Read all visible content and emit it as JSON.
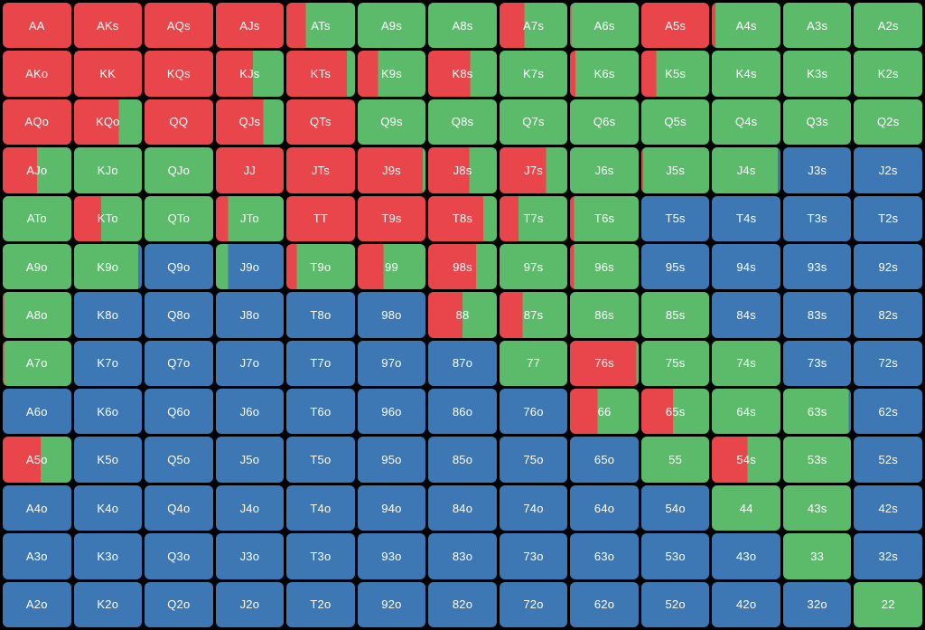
{
  "colors": {
    "raise": "#e8464a",
    "call": "#5cbb6b",
    "fold": "#3d78b4"
  },
  "rows": [
    [
      "AA",
      "AKs",
      "AQs",
      "AJs",
      "ATs",
      "A9s",
      "A8s",
      "A7s",
      "A6s",
      "A5s",
      "A4s",
      "A3s",
      "A2s"
    ],
    [
      "AKo",
      "KK",
      "KQs",
      "KJs",
      "KTs",
      "K9s",
      "K8s",
      "K7s",
      "K6s",
      "K5s",
      "K4s",
      "K3s",
      "K2s"
    ],
    [
      "AQo",
      "KQo",
      "QQ",
      "QJs",
      "QTs",
      "Q9s",
      "Q8s",
      "Q7s",
      "Q6s",
      "Q5s",
      "Q4s",
      "Q3s",
      "Q2s"
    ],
    [
      "AJo",
      "KJo",
      "QJo",
      "JJ",
      "JTs",
      "J9s",
      "J8s",
      "J7s",
      "J6s",
      "J5s",
      "J4s",
      "J3s",
      "J2s"
    ],
    [
      "ATo",
      "KTo",
      "QTo",
      "JTo",
      "TT",
      "T9s",
      "T8s",
      "T7s",
      "T6s",
      "T5s",
      "T4s",
      "T3s",
      "T2s"
    ],
    [
      "A9o",
      "K9o",
      "Q9o",
      "J9o",
      "T9o",
      "99",
      "98s",
      "97s",
      "96s",
      "95s",
      "94s",
      "93s",
      "92s"
    ],
    [
      "A8o",
      "K8o",
      "Q8o",
      "J8o",
      "T8o",
      "98o",
      "88",
      "87s",
      "86s",
      "85s",
      "84s",
      "83s",
      "82s"
    ],
    [
      "A7o",
      "K7o",
      "Q7o",
      "J7o",
      "T7o",
      "97o",
      "87o",
      "77",
      "76s",
      "75s",
      "74s",
      "73s",
      "72s"
    ],
    [
      "A6o",
      "K6o",
      "Q6o",
      "J6o",
      "T6o",
      "96o",
      "86o",
      "76o",
      "66",
      "65s",
      "64s",
      "63s",
      "62s"
    ],
    [
      "A5o",
      "K5o",
      "Q5o",
      "J5o",
      "T5o",
      "95o",
      "85o",
      "75o",
      "65o",
      "55",
      "54s",
      "53s",
      "52s"
    ],
    [
      "A4o",
      "K4o",
      "Q4o",
      "J4o",
      "T4o",
      "94o",
      "84o",
      "74o",
      "64o",
      "54o",
      "44",
      "43s",
      "42s"
    ],
    [
      "A3o",
      "K3o",
      "Q3o",
      "J3o",
      "T3o",
      "93o",
      "83o",
      "73o",
      "63o",
      "53o",
      "43o",
      "33",
      "32s"
    ],
    [
      "A2o",
      "K2o",
      "Q2o",
      "J2o",
      "T2o",
      "92o",
      "82o",
      "72o",
      "62o",
      "52o",
      "42o",
      "32o",
      "22"
    ]
  ],
  "frequencies": [
    [
      [
        100,
        0,
        0
      ],
      [
        100,
        0,
        0
      ],
      [
        100,
        0,
        0
      ],
      [
        100,
        0,
        0
      ],
      [
        28,
        72,
        0
      ],
      [
        0,
        100,
        0
      ],
      [
        0,
        100,
        0
      ],
      [
        37,
        63,
        0
      ],
      [
        2,
        98,
        0
      ],
      [
        100,
        0,
        0
      ],
      [
        5,
        95,
        0
      ],
      [
        0,
        100,
        0
      ],
      [
        0,
        100,
        0
      ]
    ],
    [
      [
        100,
        0,
        0
      ],
      [
        100,
        0,
        0
      ],
      [
        100,
        0,
        0
      ],
      [
        55,
        45,
        0
      ],
      [
        88,
        12,
        0
      ],
      [
        30,
        70,
        0
      ],
      [
        61,
        39,
        0
      ],
      [
        0,
        100,
        0
      ],
      [
        8,
        92,
        0
      ],
      [
        22,
        78,
        0
      ],
      [
        0,
        100,
        0
      ],
      [
        0,
        100,
        0
      ],
      [
        0,
        100,
        0
      ]
    ],
    [
      [
        100,
        0,
        0
      ],
      [
        66,
        34,
        0
      ],
      [
        100,
        0,
        0
      ],
      [
        70,
        30,
        0
      ],
      [
        100,
        0,
        0
      ],
      [
        0,
        100,
        0
      ],
      [
        0,
        100,
        0
      ],
      [
        0,
        100,
        0
      ],
      [
        0,
        100,
        0
      ],
      [
        0,
        100,
        0
      ],
      [
        0,
        100,
        0
      ],
      [
        0,
        100,
        0
      ],
      [
        0,
        100,
        0
      ]
    ],
    [
      [
        50,
        50,
        0
      ],
      [
        0,
        100,
        0
      ],
      [
        0,
        100,
        0
      ],
      [
        100,
        0,
        0
      ],
      [
        100,
        0,
        0
      ],
      [
        96,
        4,
        0
      ],
      [
        60,
        40,
        0
      ],
      [
        69,
        31,
        0
      ],
      [
        0,
        100,
        0
      ],
      [
        3,
        97,
        0
      ],
      [
        0,
        96,
        4
      ],
      [
        0,
        0,
        100
      ],
      [
        0,
        0,
        100
      ]
    ],
    [
      [
        0,
        100,
        0
      ],
      [
        40,
        60,
        0
      ],
      [
        0,
        100,
        0
      ],
      [
        18,
        82,
        0
      ],
      [
        100,
        0,
        0
      ],
      [
        100,
        0,
        0
      ],
      [
        80,
        20,
        0
      ],
      [
        28,
        72,
        0
      ],
      [
        6,
        94,
        0
      ],
      [
        0,
        0,
        100
      ],
      [
        0,
        0,
        100
      ],
      [
        0,
        0,
        100
      ],
      [
        0,
        0,
        100
      ]
    ],
    [
      [
        0,
        100,
        0
      ],
      [
        0,
        95,
        5
      ],
      [
        0,
        0,
        100
      ],
      [
        0,
        18,
        82
      ],
      [
        15,
        85,
        0
      ],
      [
        38,
        62,
        0
      ],
      [
        70,
        30,
        0
      ],
      [
        0,
        100,
        0
      ],
      [
        6,
        94,
        0
      ],
      [
        0,
        0,
        100
      ],
      [
        0,
        0,
        100
      ],
      [
        0,
        0,
        100
      ],
      [
        0,
        0,
        100
      ]
    ],
    [
      [
        2,
        98,
        0
      ],
      [
        0,
        0,
        100
      ],
      [
        0,
        0,
        100
      ],
      [
        0,
        0,
        100
      ],
      [
        0,
        0,
        100
      ],
      [
        0,
        0,
        100
      ],
      [
        50,
        50,
        0
      ],
      [
        34,
        66,
        0
      ],
      [
        0,
        100,
        0
      ],
      [
        0,
        100,
        0
      ],
      [
        0,
        0,
        100
      ],
      [
        0,
        0,
        100
      ],
      [
        0,
        0,
        100
      ]
    ],
    [
      [
        2,
        98,
        0
      ],
      [
        0,
        0,
        100
      ],
      [
        0,
        0,
        100
      ],
      [
        0,
        0,
        100
      ],
      [
        0,
        0,
        100
      ],
      [
        0,
        0,
        100
      ],
      [
        0,
        0,
        100
      ],
      [
        0,
        100,
        0
      ],
      [
        97,
        3,
        0
      ],
      [
        0,
        100,
        0
      ],
      [
        0,
        100,
        0
      ],
      [
        0,
        0,
        100
      ],
      [
        0,
        0,
        100
      ]
    ],
    [
      [
        0,
        0,
        100
      ],
      [
        0,
        0,
        100
      ],
      [
        0,
        0,
        100
      ],
      [
        0,
        0,
        100
      ],
      [
        0,
        0,
        100
      ],
      [
        0,
        0,
        100
      ],
      [
        0,
        0,
        100
      ],
      [
        0,
        0,
        100
      ],
      [
        40,
        60,
        0
      ],
      [
        47,
        53,
        0
      ],
      [
        0,
        100,
        0
      ],
      [
        0,
        97,
        3
      ],
      [
        0,
        0,
        100
      ]
    ],
    [
      [
        55,
        45,
        0
      ],
      [
        0,
        0,
        100
      ],
      [
        0,
        0,
        100
      ],
      [
        0,
        0,
        100
      ],
      [
        0,
        0,
        100
      ],
      [
        0,
        0,
        100
      ],
      [
        0,
        0,
        100
      ],
      [
        0,
        0,
        100
      ],
      [
        0,
        0,
        100
      ],
      [
        0,
        100,
        0
      ],
      [
        52,
        48,
        0
      ],
      [
        0,
        100,
        0
      ],
      [
        0,
        0,
        100
      ]
    ],
    [
      [
        0,
        0,
        100
      ],
      [
        0,
        0,
        100
      ],
      [
        0,
        0,
        100
      ],
      [
        0,
        0,
        100
      ],
      [
        0,
        0,
        100
      ],
      [
        0,
        0,
        100
      ],
      [
        0,
        0,
        100
      ],
      [
        0,
        0,
        100
      ],
      [
        0,
        0,
        100
      ],
      [
        0,
        0,
        100
      ],
      [
        0,
        100,
        0
      ],
      [
        0,
        100,
        0
      ],
      [
        0,
        0,
        100
      ]
    ],
    [
      [
        0,
        0,
        100
      ],
      [
        0,
        0,
        100
      ],
      [
        0,
        0,
        100
      ],
      [
        0,
        0,
        100
      ],
      [
        0,
        0,
        100
      ],
      [
        0,
        0,
        100
      ],
      [
        0,
        0,
        100
      ],
      [
        0,
        0,
        100
      ],
      [
        0,
        0,
        100
      ],
      [
        0,
        0,
        100
      ],
      [
        0,
        0,
        100
      ],
      [
        0,
        100,
        0
      ],
      [
        0,
        0,
        100
      ]
    ],
    [
      [
        0,
        0,
        100
      ],
      [
        0,
        0,
        100
      ],
      [
        0,
        0,
        100
      ],
      [
        0,
        0,
        100
      ],
      [
        0,
        0,
        100
      ],
      [
        0,
        0,
        100
      ],
      [
        0,
        0,
        100
      ],
      [
        0,
        0,
        100
      ],
      [
        0,
        0,
        100
      ],
      [
        0,
        0,
        100
      ],
      [
        0,
        0,
        100
      ],
      [
        0,
        0,
        100
      ],
      [
        0,
        100,
        0
      ]
    ]
  ]
}
